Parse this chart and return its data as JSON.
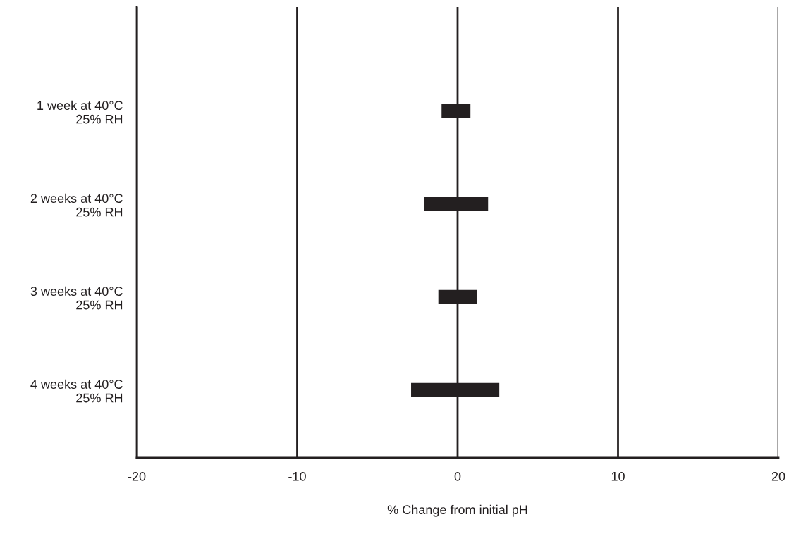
{
  "chart_data": {
    "type": "bar",
    "orientation": "horizontal",
    "xlabel": "% Change from initial pH",
    "categories": [
      "1 week at 40°C\n25% RH",
      "2 weeks at 40°C\n25% RH",
      "3 weeks at 40°C\n25% RH",
      "4 weeks at 40°C\n25% RH"
    ],
    "base": [
      -1.0,
      -2.1,
      -1.2,
      -2.9
    ],
    "values": [
      1.8,
      4.0,
      2.4,
      5.5
    ],
    "color": "#231f20",
    "xlim": [
      -20,
      20
    ],
    "xticks": [
      -20,
      -10,
      0,
      10,
      20
    ],
    "grid": "x",
    "legend": false
  }
}
